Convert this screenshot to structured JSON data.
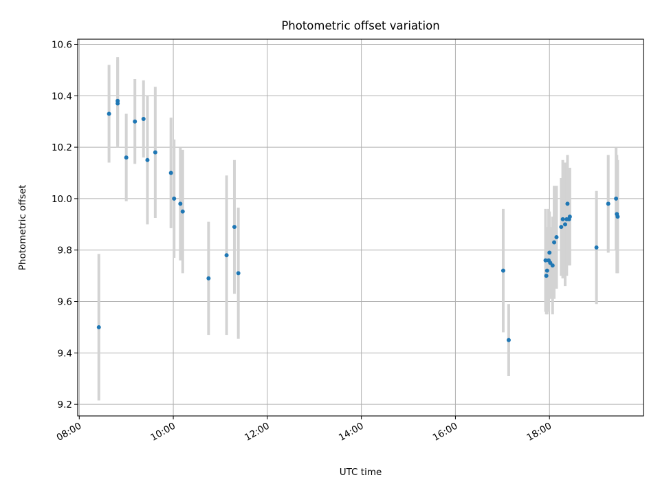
{
  "chart_data": {
    "type": "scatter",
    "title": "Photometric offset variation",
    "xlabel": "UTC time",
    "ylabel": "Photometric offset",
    "grid": true,
    "xlim": [
      "07:58",
      "20:00"
    ],
    "ylim": [
      9.155,
      10.62
    ],
    "x_ticks": [
      "08:00",
      "10:00",
      "12:00",
      "14:00",
      "16:00",
      "18:00"
    ],
    "y_ticks": [
      "9.2",
      "9.4",
      "9.6",
      "9.8",
      "10.0",
      "10.2",
      "10.4",
      "10.6"
    ],
    "point_color": "#1f77b4",
    "errorbar_color": "#d3d3d3",
    "points": [
      {
        "x": "08:25",
        "y": 9.5,
        "yerr": 0.285
      },
      {
        "x": "08:38",
        "y": 10.33,
        "yerr": 0.19
      },
      {
        "x": "08:49",
        "y": 10.38,
        "yerr": 0.17
      },
      {
        "x": "08:49",
        "y": 10.37,
        "yerr": 0.17
      },
      {
        "x": "09:00",
        "y": 10.16,
        "yerr": 0.17
      },
      {
        "x": "09:11",
        "y": 10.3,
        "yerr": 0.165
      },
      {
        "x": "09:22",
        "y": 10.31,
        "yerr": 0.15
      },
      {
        "x": "09:27",
        "y": 10.15,
        "yerr": 0.25
      },
      {
        "x": "09:37",
        "y": 10.18,
        "yerr": 0.255
      },
      {
        "x": "09:57",
        "y": 10.1,
        "yerr": 0.215
      },
      {
        "x": "10:01",
        "y": 10.0,
        "yerr": 0.23
      },
      {
        "x": "10:09",
        "y": 9.98,
        "yerr": 0.22
      },
      {
        "x": "10:12",
        "y": 9.95,
        "yerr": 0.24
      },
      {
        "x": "10:45",
        "y": 9.69,
        "yerr": 0.22
      },
      {
        "x": "11:08",
        "y": 9.78,
        "yerr": 0.31
      },
      {
        "x": "11:18",
        "y": 9.89,
        "yerr": 0.26
      },
      {
        "x": "11:23",
        "y": 9.71,
        "yerr": 0.255
      },
      {
        "x": "17:01",
        "y": 9.72,
        "yerr": 0.24
      },
      {
        "x": "17:08",
        "y": 9.45,
        "yerr": 0.14
      },
      {
        "x": "17:55",
        "y": 9.76,
        "yerr": 0.2
      },
      {
        "x": "17:56",
        "y": 9.7,
        "yerr": 0.15
      },
      {
        "x": "17:57",
        "y": 9.72,
        "yerr": 0.17
      },
      {
        "x": "17:59",
        "y": 9.76,
        "yerr": 0.2
      },
      {
        "x": "18:00",
        "y": 9.79,
        "yerr": 0.16
      },
      {
        "x": "18:01",
        "y": 9.75,
        "yerr": 0.14
      },
      {
        "x": "18:04",
        "y": 9.74,
        "yerr": 0.19
      },
      {
        "x": "18:06",
        "y": 9.83,
        "yerr": 0.22
      },
      {
        "x": "18:09",
        "y": 9.85,
        "yerr": 0.2
      },
      {
        "x": "18:15",
        "y": 9.89,
        "yerr": 0.19
      },
      {
        "x": "18:17",
        "y": 9.92,
        "yerr": 0.23
      },
      {
        "x": "18:20",
        "y": 9.9,
        "yerr": 0.24
      },
      {
        "x": "18:22",
        "y": 9.92,
        "yerr": 0.22
      },
      {
        "x": "18:23",
        "y": 9.98,
        "yerr": 0.19
      },
      {
        "x": "18:25",
        "y": 9.92,
        "yerr": 0.18
      },
      {
        "x": "18:26",
        "y": 9.93,
        "yerr": 0.19
      },
      {
        "x": "19:00",
        "y": 9.81,
        "yerr": 0.22
      },
      {
        "x": "19:15",
        "y": 9.98,
        "yerr": 0.19
      },
      {
        "x": "19:25",
        "y": 10.0,
        "yerr": 0.2
      },
      {
        "x": "19:26",
        "y": 9.94,
        "yerr": 0.23
      },
      {
        "x": "19:27",
        "y": 9.93,
        "yerr": 0.22
      }
    ]
  }
}
